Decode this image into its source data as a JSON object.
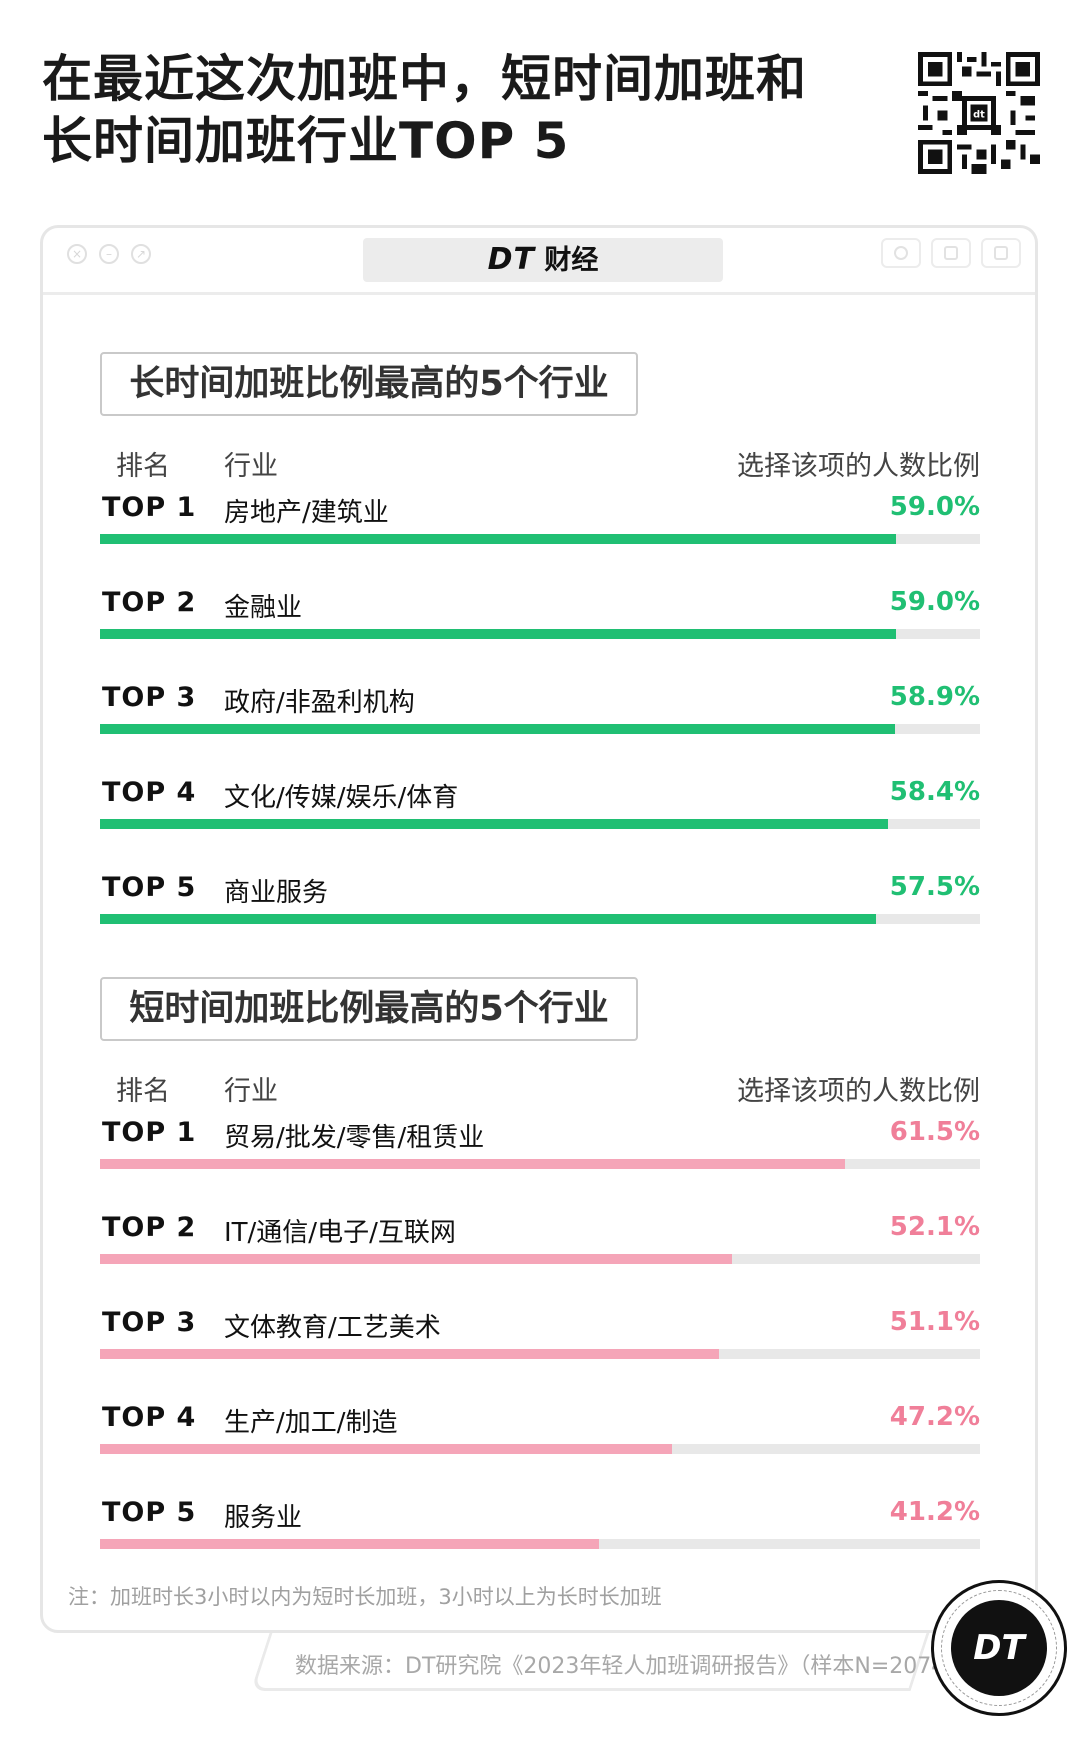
{
  "title_lines": [
    "在最近这次加班中，短时间加班和",
    "长时间加班行业TOP 5"
  ],
  "window": {
    "brand_dt": "DT",
    "brand_text": "财经"
  },
  "headers": {
    "rank": "排名",
    "industry": "行业",
    "percent": "选择该项的人数比例"
  },
  "colors": {
    "long_accent": "#20bf73",
    "short_accent": "#f07f99",
    "short_bar": "#f5a5b8"
  },
  "chart_data": [
    {
      "type": "bar",
      "orientation": "horizontal",
      "title": "长时间加班比例最高的5个行业",
      "ranks": [
        "TOP 1",
        "TOP 2",
        "TOP 3",
        "TOP 4",
        "TOP 5"
      ],
      "categories": [
        "房地产/建筑业",
        "金融业",
        "政府/非盈利机构",
        "文化/传媒/娱乐/体育",
        "商业服务"
      ],
      "values": [
        59.0,
        59.0,
        58.9,
        58.4,
        57.5
      ],
      "labels": [
        "59.0%",
        "59.0%",
        "58.9%",
        "58.4%",
        "57.5%"
      ],
      "xlim": [
        0,
        65.2
      ]
    },
    {
      "type": "bar",
      "orientation": "horizontal",
      "title": "短时间加班比例最高的5个行业",
      "ranks": [
        "TOP 1",
        "TOP 2",
        "TOP 3",
        "TOP 4",
        "TOP 5"
      ],
      "categories": [
        "贸易/批发/零售/租赁业",
        "IT/通信/电子/互联网",
        "文体教育/工艺美术",
        "生产/加工/制造",
        "服务业"
      ],
      "values": [
        61.5,
        52.1,
        51.1,
        47.2,
        41.2
      ],
      "labels": [
        "61.5%",
        "52.1%",
        "51.1%",
        "47.2%",
        "41.2%"
      ],
      "xlim": [
        0,
        72.6
      ]
    }
  ],
  "note": "注：加班时长3小时以内为短时长加班，3小时以上为长时长加班",
  "source": "数据来源：DT研究院《2023年轻人加班调研报告》（样本N=2074）",
  "logo_text": "DT"
}
